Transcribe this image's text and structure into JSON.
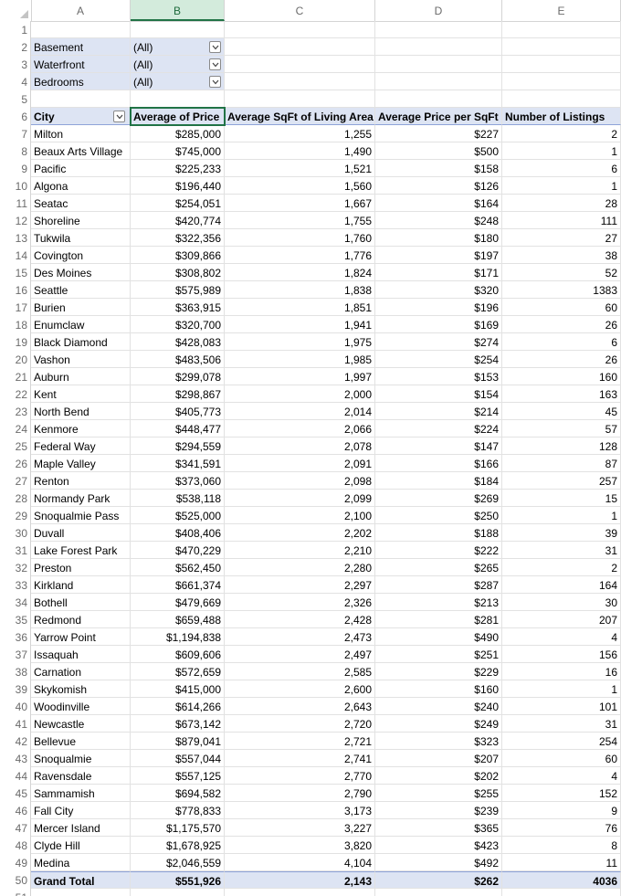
{
  "columns": [
    "A",
    "B",
    "C",
    "D",
    "E"
  ],
  "selected_column": "B",
  "filters": [
    {
      "row": "2",
      "label": "Basement",
      "value": "(All)"
    },
    {
      "row": "3",
      "label": "Waterfront",
      "value": "(All)"
    },
    {
      "row": "4",
      "label": "Bedrooms",
      "value": "(All)"
    }
  ],
  "empty_rows": [
    "1",
    "5",
    "51"
  ],
  "header": {
    "row": "6",
    "city": "City",
    "avg_price": "Average of Price",
    "avg_sqft": "Average SqFt of Living Area",
    "avg_ppsf": "Average Price per SqFt",
    "listings": "Number of Listings"
  },
  "rows": [
    {
      "n": "7",
      "city": "Milton",
      "price": "$285,000",
      "sqft": "1,255",
      "ppsf": "$227",
      "count": "2"
    },
    {
      "n": "8",
      "city": "Beaux Arts Village",
      "price": "$745,000",
      "sqft": "1,490",
      "ppsf": "$500",
      "count": "1"
    },
    {
      "n": "9",
      "city": "Pacific",
      "price": "$225,233",
      "sqft": "1,521",
      "ppsf": "$158",
      "count": "6"
    },
    {
      "n": "10",
      "city": "Algona",
      "price": "$196,440",
      "sqft": "1,560",
      "ppsf": "$126",
      "count": "1"
    },
    {
      "n": "11",
      "city": "Seatac",
      "price": "$254,051",
      "sqft": "1,667",
      "ppsf": "$164",
      "count": "28"
    },
    {
      "n": "12",
      "city": "Shoreline",
      "price": "$420,774",
      "sqft": "1,755",
      "ppsf": "$248",
      "count": "111"
    },
    {
      "n": "13",
      "city": "Tukwila",
      "price": "$322,356",
      "sqft": "1,760",
      "ppsf": "$180",
      "count": "27"
    },
    {
      "n": "14",
      "city": "Covington",
      "price": "$309,866",
      "sqft": "1,776",
      "ppsf": "$197",
      "count": "38"
    },
    {
      "n": "15",
      "city": "Des Moines",
      "price": "$308,802",
      "sqft": "1,824",
      "ppsf": "$171",
      "count": "52"
    },
    {
      "n": "16",
      "city": "Seattle",
      "price": "$575,989",
      "sqft": "1,838",
      "ppsf": "$320",
      "count": "1383"
    },
    {
      "n": "17",
      "city": "Burien",
      "price": "$363,915",
      "sqft": "1,851",
      "ppsf": "$196",
      "count": "60"
    },
    {
      "n": "18",
      "city": "Enumclaw",
      "price": "$320,700",
      "sqft": "1,941",
      "ppsf": "$169",
      "count": "26"
    },
    {
      "n": "19",
      "city": "Black Diamond",
      "price": "$428,083",
      "sqft": "1,975",
      "ppsf": "$274",
      "count": "6"
    },
    {
      "n": "20",
      "city": "Vashon",
      "price": "$483,506",
      "sqft": "1,985",
      "ppsf": "$254",
      "count": "26"
    },
    {
      "n": "21",
      "city": "Auburn",
      "price": "$299,078",
      "sqft": "1,997",
      "ppsf": "$153",
      "count": "160"
    },
    {
      "n": "22",
      "city": "Kent",
      "price": "$298,867",
      "sqft": "2,000",
      "ppsf": "$154",
      "count": "163"
    },
    {
      "n": "23",
      "city": "North Bend",
      "price": "$405,773",
      "sqft": "2,014",
      "ppsf": "$214",
      "count": "45"
    },
    {
      "n": "24",
      "city": "Kenmore",
      "price": "$448,477",
      "sqft": "2,066",
      "ppsf": "$224",
      "count": "57"
    },
    {
      "n": "25",
      "city": "Federal Way",
      "price": "$294,559",
      "sqft": "2,078",
      "ppsf": "$147",
      "count": "128"
    },
    {
      "n": "26",
      "city": "Maple Valley",
      "price": "$341,591",
      "sqft": "2,091",
      "ppsf": "$166",
      "count": "87"
    },
    {
      "n": "27",
      "city": "Renton",
      "price": "$373,060",
      "sqft": "2,098",
      "ppsf": "$184",
      "count": "257"
    },
    {
      "n": "28",
      "city": "Normandy Park",
      "price": "$538,118",
      "sqft": "2,099",
      "ppsf": "$269",
      "count": "15"
    },
    {
      "n": "29",
      "city": "Snoqualmie Pass",
      "price": "$525,000",
      "sqft": "2,100",
      "ppsf": "$250",
      "count": "1"
    },
    {
      "n": "30",
      "city": "Duvall",
      "price": "$408,406",
      "sqft": "2,202",
      "ppsf": "$188",
      "count": "39"
    },
    {
      "n": "31",
      "city": "Lake Forest Park",
      "price": "$470,229",
      "sqft": "2,210",
      "ppsf": "$222",
      "count": "31"
    },
    {
      "n": "32",
      "city": "Preston",
      "price": "$562,450",
      "sqft": "2,280",
      "ppsf": "$265",
      "count": "2"
    },
    {
      "n": "33",
      "city": "Kirkland",
      "price": "$661,374",
      "sqft": "2,297",
      "ppsf": "$287",
      "count": "164"
    },
    {
      "n": "34",
      "city": "Bothell",
      "price": "$479,669",
      "sqft": "2,326",
      "ppsf": "$213",
      "count": "30"
    },
    {
      "n": "35",
      "city": "Redmond",
      "price": "$659,488",
      "sqft": "2,428",
      "ppsf": "$281",
      "count": "207"
    },
    {
      "n": "36",
      "city": "Yarrow Point",
      "price": "$1,194,838",
      "sqft": "2,473",
      "ppsf": "$490",
      "count": "4"
    },
    {
      "n": "37",
      "city": "Issaquah",
      "price": "$609,606",
      "sqft": "2,497",
      "ppsf": "$251",
      "count": "156"
    },
    {
      "n": "38",
      "city": "Carnation",
      "price": "$572,659",
      "sqft": "2,585",
      "ppsf": "$229",
      "count": "16"
    },
    {
      "n": "39",
      "city": "Skykomish",
      "price": "$415,000",
      "sqft": "2,600",
      "ppsf": "$160",
      "count": "1"
    },
    {
      "n": "40",
      "city": "Woodinville",
      "price": "$614,266",
      "sqft": "2,643",
      "ppsf": "$240",
      "count": "101"
    },
    {
      "n": "41",
      "city": "Newcastle",
      "price": "$673,142",
      "sqft": "2,720",
      "ppsf": "$249",
      "count": "31"
    },
    {
      "n": "42",
      "city": "Bellevue",
      "price": "$879,041",
      "sqft": "2,721",
      "ppsf": "$323",
      "count": "254"
    },
    {
      "n": "43",
      "city": "Snoqualmie",
      "price": "$557,044",
      "sqft": "2,741",
      "ppsf": "$207",
      "count": "60"
    },
    {
      "n": "44",
      "city": "Ravensdale",
      "price": "$557,125",
      "sqft": "2,770",
      "ppsf": "$202",
      "count": "4"
    },
    {
      "n": "45",
      "city": "Sammamish",
      "price": "$694,582",
      "sqft": "2,790",
      "ppsf": "$255",
      "count": "152"
    },
    {
      "n": "46",
      "city": "Fall City",
      "price": "$778,833",
      "sqft": "3,173",
      "ppsf": "$239",
      "count": "9"
    },
    {
      "n": "47",
      "city": "Mercer Island",
      "price": "$1,175,570",
      "sqft": "3,227",
      "ppsf": "$365",
      "count": "76"
    },
    {
      "n": "48",
      "city": "Clyde Hill",
      "price": "$1,678,925",
      "sqft": "3,820",
      "ppsf": "$423",
      "count": "8"
    },
    {
      "n": "49",
      "city": "Medina",
      "price": "$2,046,559",
      "sqft": "4,104",
      "ppsf": "$492",
      "count": "11"
    }
  ],
  "total": {
    "n": "50",
    "city": "Grand Total",
    "price": "$551,926",
    "sqft": "2,143",
    "ppsf": "$262",
    "count": "4036"
  },
  "colors": {
    "accent": "#217346",
    "pivot_fill": "#dde4f3",
    "selected_header": "#d3ebdc"
  },
  "icons": {
    "filter_dropdown": "chevron-down-icon",
    "corner": "select-all-triangle-icon"
  }
}
